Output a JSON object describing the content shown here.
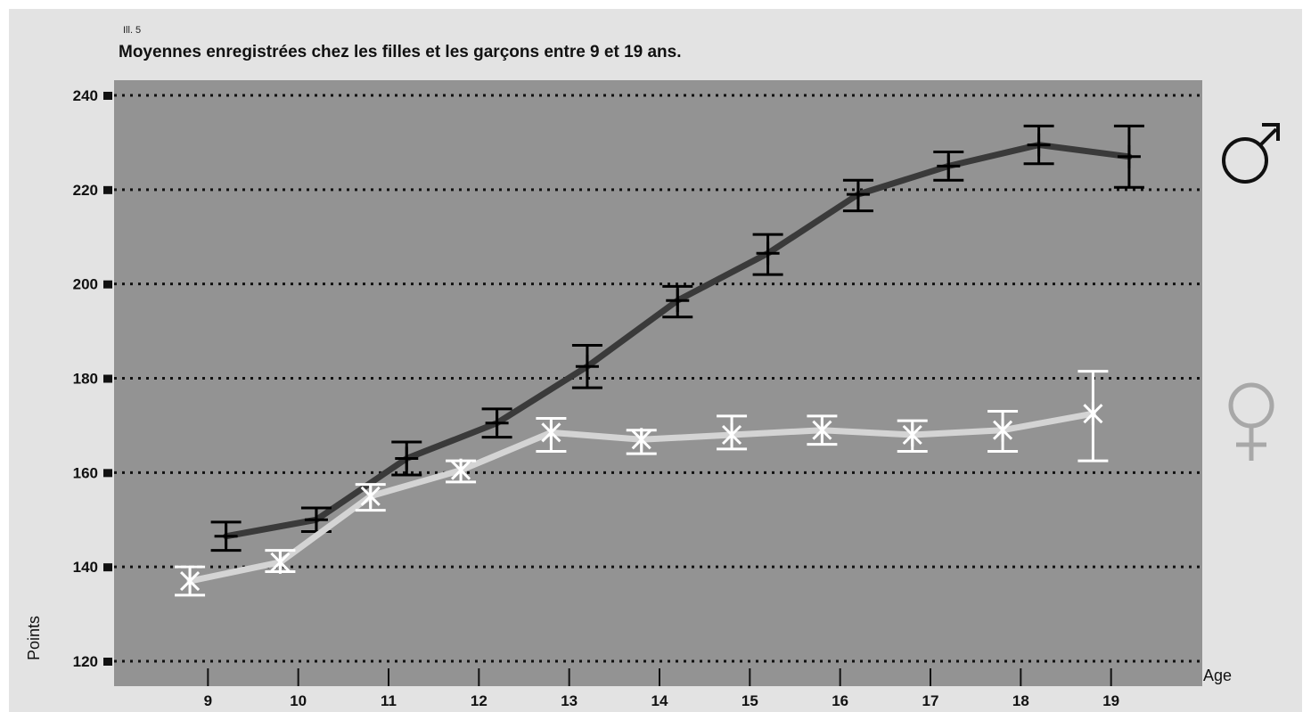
{
  "figure_number": "Ill. 5",
  "chart_data": {
    "type": "line",
    "title": "Moyennes enregistrées chez les filles et les garçons entre 9 et 19 ans.",
    "xlabel": "Age",
    "ylabel": "Points",
    "categories": [
      "9",
      "10",
      "11",
      "12",
      "13",
      "14",
      "15",
      "16",
      "17",
      "18",
      "19"
    ],
    "ylim": [
      120,
      240
    ],
    "yticks": [
      120,
      140,
      160,
      180,
      200,
      220,
      240
    ],
    "grid": true,
    "legend": "right",
    "series": [
      {
        "name": "♂",
        "color": "#3a3a3a",
        "error_color": "#000000",
        "marker": "plus",
        "x": [
          9.2,
          10.2,
          11.2,
          12.2,
          13.2,
          14.2,
          15.2,
          16.2,
          17.2,
          18.2,
          19.2
        ],
        "values": [
          146.5,
          150.0,
          163.0,
          170.5,
          182.5,
          196.5,
          206.5,
          219.0,
          225.0,
          229.5,
          227.0
        ],
        "err_low": [
          143.5,
          147.5,
          159.5,
          167.5,
          178.0,
          193.0,
          202.0,
          215.5,
          222.0,
          225.5,
          220.5
        ],
        "err_high": [
          149.5,
          152.5,
          166.5,
          173.5,
          187.0,
          199.5,
          210.5,
          222.0,
          228.0,
          233.5,
          233.5
        ]
      },
      {
        "name": "♀",
        "color": "#d4d4d4",
        "error_color": "#ffffff",
        "marker": "star",
        "x": [
          8.8,
          9.8,
          10.8,
          11.8,
          12.8,
          13.8,
          14.8,
          15.8,
          16.8,
          17.8,
          18.8
        ],
        "values": [
          137.0,
          141.0,
          155.0,
          160.5,
          168.5,
          167.0,
          168.0,
          169.0,
          168.0,
          169.0,
          172.5
        ],
        "err_low": [
          134.0,
          139.0,
          152.0,
          158.0,
          164.5,
          164.0,
          165.0,
          166.0,
          164.5,
          164.5,
          162.5
        ],
        "err_high": [
          140.0,
          143.5,
          157.5,
          162.5,
          171.5,
          169.0,
          172.0,
          172.0,
          171.0,
          173.0,
          181.5
        ]
      }
    ]
  }
}
